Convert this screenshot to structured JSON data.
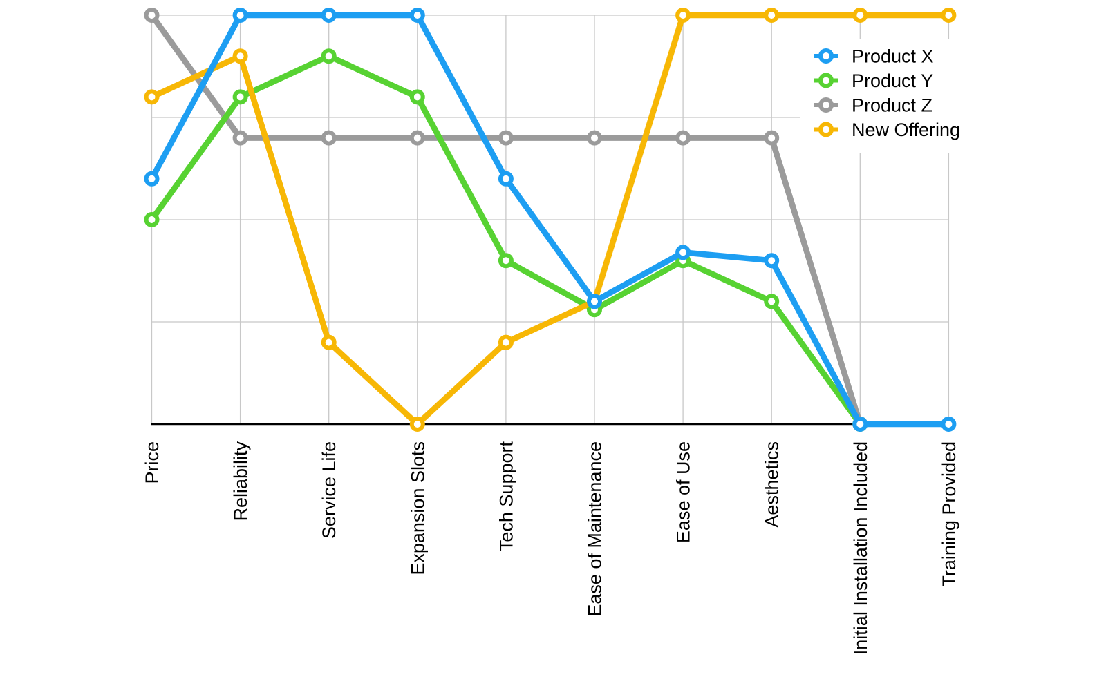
{
  "chart_data": {
    "type": "line",
    "title": "",
    "xlabel": "",
    "ylabel": "",
    "ylim": [
      0,
      10
    ],
    "gridline_values": [
      2.5,
      5,
      7.5,
      10
    ],
    "grid": true,
    "legend_position": "top-right",
    "marker_style": "open-circle",
    "categories": [
      "Price",
      "Reliability",
      "Service Life",
      "Expansion Slots",
      "Tech Support",
      "Ease of Maintenance",
      "Ease of Use",
      "Aesthetics",
      "Initial Installation Included",
      "Training Provided"
    ],
    "series": [
      {
        "name": "Product X",
        "color": "#1D9EF2",
        "values": [
          6,
          10,
          10,
          10,
          6,
          3,
          4.2,
          4,
          0,
          0
        ]
      },
      {
        "name": "Product Y",
        "color": "#57D232",
        "values": [
          5,
          8,
          9,
          8,
          4,
          2.8,
          4,
          3,
          0,
          null
        ]
      },
      {
        "name": "Product Z",
        "color": "#9B9B9B",
        "values": [
          10,
          7,
          7,
          7,
          7,
          7,
          7,
          7,
          0,
          null
        ]
      },
      {
        "name": "New Offering",
        "color": "#F7B705",
        "values": [
          8,
          9,
          2,
          0,
          2,
          3,
          10,
          10,
          10,
          10
        ]
      }
    ],
    "draw_order": [
      "Product Z",
      "Product Y",
      "New Offering",
      "Product X"
    ],
    "colors": {
      "gridline": "#C8C8C8",
      "axis": "#000000",
      "text": "#000000",
      "legend_background": "#FFFFFF"
    }
  }
}
